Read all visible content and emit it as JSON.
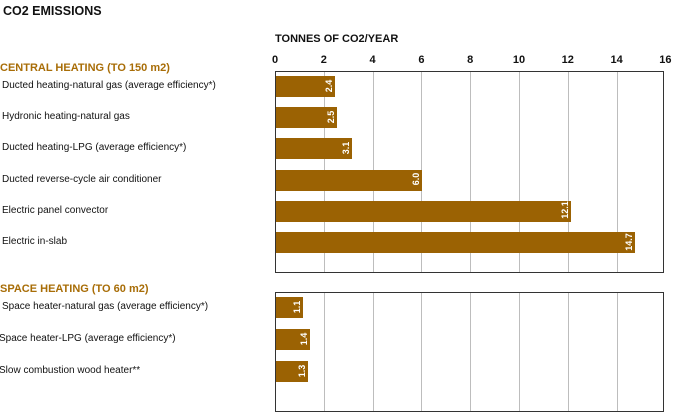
{
  "title": "CO2 EMISSIONS",
  "axis_title": "TONNES OF CO2/YEAR",
  "colors": {
    "bar": "#9b6203",
    "section": "#a86d07",
    "grid": "#bdbdbd"
  },
  "chart_data": {
    "type": "bar",
    "orientation": "horizontal",
    "title": "CO2 EMISSIONS",
    "xlabel": "TONNES OF CO2/YEAR",
    "xlim": [
      0,
      16
    ],
    "x_ticks": [
      "0",
      "2",
      "4",
      "6",
      "8",
      "10",
      "12",
      "14",
      "16"
    ],
    "grid": true,
    "groups": [
      {
        "name": "CENTRAL HEATING (TO 150 m2)",
        "categories": [
          "Ducted heating-natural gas (average efficiency*)",
          "Hydronic heating-natural gas",
          "Ducted heating-LPG (average efficiency*)",
          "Ducted reverse-cycle air conditioner",
          "Electric panel convector",
          "Electric in-slab"
        ],
        "values": [
          2.4,
          2.5,
          3.1,
          6.0,
          12.1,
          14.7
        ],
        "value_labels": [
          "2.4",
          "2.5",
          "3.1",
          "6.0",
          "12.1",
          "14.7"
        ]
      },
      {
        "name": "SPACE HEATING (TO 60 m2)",
        "categories": [
          "Space heater-natural gas (average efficiency*)",
          "Space heater-LPG (average efficiency*)",
          "Slow combustion wood heater**"
        ],
        "values": [
          1.1,
          1.4,
          1.3
        ],
        "value_labels": [
          "1.1",
          "1.4",
          "1.3"
        ]
      }
    ]
  }
}
